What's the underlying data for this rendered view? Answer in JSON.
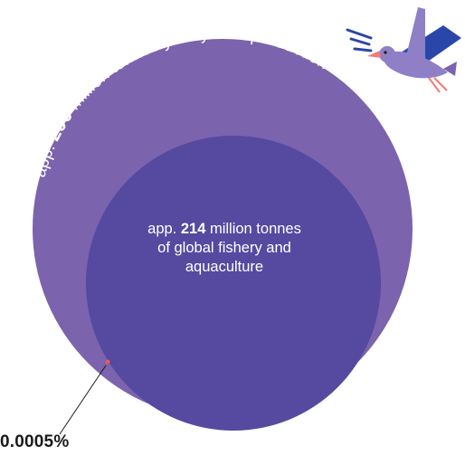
{
  "outer": {
    "prefix": "app. ",
    "value": "290",
    "suffix": " million tonnes yearly new production"
  },
  "inner": {
    "line1_prefix": "app. ",
    "value": "214",
    "line1_suffix": " million tonnes",
    "line2": "of global fishery and",
    "line3": "aquaculture"
  },
  "callout": {
    "percent": "0.0005%"
  },
  "colors": {
    "outer_circle": "#7b63ad",
    "inner_circle": "#5549a0",
    "dot": "#e85a5a",
    "bird_body": "#8f7fc7",
    "bird_wing": "#2a46a8",
    "bird_beak": "#f07a78"
  },
  "icons": {
    "bird": "seagull-with-fish-icon",
    "sound_lines": "motion-lines-icon"
  }
}
